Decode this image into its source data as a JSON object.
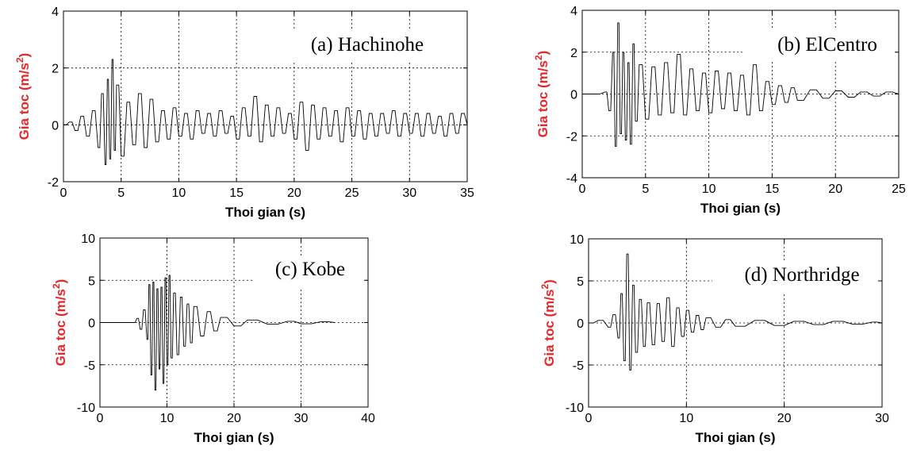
{
  "chart_data": [
    {
      "type": "line",
      "title": "(a) Hachinohe",
      "xlabel": "Thoi gian (s)",
      "ylabel": "Gia toc (m/s",
      "ylabel_sup": "2",
      "ylabel_end": ")",
      "xlim": [
        0,
        35
      ],
      "ylim": [
        -2,
        4
      ],
      "xticks": [
        0,
        5,
        10,
        15,
        20,
        25,
        30,
        35
      ],
      "yticks": [
        -2,
        0,
        2,
        4
      ],
      "grid": true,
      "series": [
        {
          "x": [
            0,
            0.5,
            1,
            1.5,
            2,
            2.5,
            3,
            3.3,
            3.6,
            3.8,
            4,
            4.2,
            4.4,
            4.6,
            5,
            5.5,
            6,
            6.5,
            7,
            7.5,
            8,
            8.5,
            9,
            9.5,
            10,
            10.5,
            11,
            11.5,
            12,
            12.5,
            13,
            13.5,
            14,
            14.5,
            15,
            15.5,
            16,
            16.5,
            17,
            17.5,
            18,
            18.5,
            19,
            19.5,
            20,
            20.5,
            21,
            21.5,
            22,
            22.5,
            23,
            23.5,
            24,
            24.5,
            25,
            25.5,
            26,
            26.5,
            27,
            27.5,
            28,
            28.5,
            29,
            29.5,
            30,
            30.5,
            31,
            31.5,
            32,
            32.5,
            33,
            33.5,
            34,
            34.5,
            35
          ],
          "y": [
            0,
            0.1,
            -0.2,
            0.3,
            -0.4,
            0.5,
            -0.8,
            1.1,
            -1.4,
            1.6,
            -1.2,
            2.3,
            -0.9,
            1.4,
            -1.1,
            0.8,
            -0.7,
            1.1,
            -0.8,
            0.9,
            -0.6,
            0.5,
            -0.5,
            0.6,
            -0.4,
            0.4,
            -0.5,
            0.5,
            -0.3,
            0.4,
            -0.4,
            0.5,
            -0.3,
            0.3,
            -0.5,
            0.6,
            -0.4,
            1.0,
            -0.6,
            0.7,
            -0.4,
            0.6,
            -0.3,
            0.4,
            -0.5,
            0.8,
            -0.9,
            0.7,
            -0.5,
            0.6,
            -0.4,
            0.5,
            -0.6,
            0.6,
            -0.4,
            0.5,
            -0.5,
            0.4,
            -0.4,
            0.4,
            -0.3,
            0.5,
            -0.4,
            0.4,
            -0.3,
            0.4,
            -0.4,
            0.4,
            -0.3,
            0.3,
            -0.4,
            0.4,
            -0.3,
            0.4,
            0
          ]
        }
      ]
    },
    {
      "type": "line",
      "title": "(b) ElCentro",
      "xlabel": "Thoi gian (s)",
      "ylabel": "Gia toc (m/s",
      "ylabel_sup": "2",
      "ylabel_end": ")",
      "xlim": [
        0,
        25
      ],
      "ylim": [
        -4,
        4
      ],
      "xticks": [
        0,
        5,
        10,
        15,
        20,
        25
      ],
      "yticks": [
        -4,
        -2,
        0,
        2,
        4
      ],
      "grid": true,
      "series": [
        {
          "x": [
            0,
            1,
            1.8,
            2.1,
            2.4,
            2.6,
            2.8,
            3,
            3.2,
            3.4,
            3.6,
            3.8,
            4,
            4.2,
            4.5,
            5,
            5.5,
            6,
            6.5,
            7,
            7.5,
            8,
            8.5,
            9,
            9.5,
            10,
            10.5,
            11,
            11.5,
            12,
            12.5,
            13,
            13.5,
            14,
            14.5,
            15,
            15.5,
            16,
            16.5,
            17,
            18,
            19,
            20,
            21,
            22,
            23,
            24,
            25
          ],
          "y": [
            0,
            0,
            0.1,
            -0.8,
            2.0,
            -2.5,
            3.4,
            -1.9,
            2.0,
            -2.2,
            1.5,
            -2.4,
            2.4,
            -1.3,
            1.4,
            -1.2,
            1.3,
            -1.0,
            1.5,
            -0.9,
            1.9,
            -1.0,
            1.2,
            -0.8,
            1.0,
            -0.9,
            1.1,
            -0.7,
            1.0,
            -0.8,
            0.9,
            -1.0,
            1.4,
            -0.8,
            0.6,
            -0.5,
            0.4,
            -0.4,
            0.3,
            -0.3,
            0.2,
            -0.2,
            0.15,
            -0.15,
            0.1,
            -0.1,
            0.1,
            0
          ]
        }
      ]
    },
    {
      "type": "line",
      "title": "(c) Kobe",
      "xlabel": "Thoi gian (s)",
      "ylabel": "Gia toc (m/s",
      "ylabel_sup": "2",
      "ylabel_end": ")",
      "xlim": [
        0,
        40
      ],
      "ylim": [
        -10,
        10
      ],
      "xticks": [
        0,
        10,
        20,
        30,
        40
      ],
      "yticks": [
        -10,
        -5,
        0,
        5,
        10
      ],
      "grid": true,
      "series": [
        {
          "x": [
            0,
            5,
            5.5,
            6,
            6.5,
            7,
            7.3,
            7.6,
            7.9,
            8.2,
            8.5,
            8.8,
            9.1,
            9.4,
            9.7,
            10,
            10.3,
            10.6,
            11,
            11.5,
            12,
            12.5,
            13,
            13.5,
            14,
            15,
            16,
            17,
            18,
            20,
            22,
            25,
            28,
            30,
            33,
            35
          ],
          "y": [
            0,
            0,
            0.5,
            -0.8,
            1.5,
            -2.0,
            4.5,
            -6.2,
            4.8,
            -8.0,
            4.0,
            -5.5,
            4.2,
            -7.2,
            5.3,
            -5.0,
            5.6,
            -4.2,
            3.5,
            -3.8,
            3.0,
            -2.8,
            2.2,
            -2.4,
            1.9,
            -1.6,
            1.3,
            -1.0,
            0.6,
            -0.4,
            0.3,
            -0.2,
            0.15,
            -0.15,
            0.1,
            0
          ]
        }
      ]
    },
    {
      "type": "line",
      "title": "(d) Northridge",
      "xlabel": "Thoi gian (s)",
      "ylabel": "Gia toc (m/s",
      "ylabel_sup": "2",
      "ylabel_end": ")",
      "xlim": [
        0,
        30
      ],
      "ylim": [
        -10,
        10
      ],
      "xticks": [
        0,
        10,
        20,
        30
      ],
      "yticks": [
        -10,
        -5,
        0,
        5,
        10
      ],
      "grid": true,
      "series": [
        {
          "x": [
            0,
            1,
            2,
            2.5,
            3,
            3.3,
            3.6,
            3.9,
            4.2,
            4.5,
            4.8,
            5.2,
            5.6,
            6,
            6.5,
            7,
            7.5,
            8,
            8.5,
            9,
            9.5,
            10,
            10.5,
            11,
            11.5,
            12,
            13,
            14,
            15,
            17,
            19,
            21,
            23,
            25,
            27,
            29,
            30
          ],
          "y": [
            0,
            0.3,
            -0.5,
            1.0,
            -1.8,
            3.5,
            -4.5,
            8.2,
            -5.6,
            4.5,
            -3.5,
            2.8,
            -2.8,
            2.4,
            -2.6,
            2.3,
            -2.2,
            3.0,
            -2.8,
            1.8,
            -1.6,
            1.5,
            -1.1,
            0.9,
            -0.8,
            0.6,
            -0.5,
            0.4,
            -0.4,
            0.3,
            -0.3,
            0.2,
            -0.2,
            0.2,
            -0.15,
            0.1,
            0
          ]
        }
      ]
    }
  ]
}
